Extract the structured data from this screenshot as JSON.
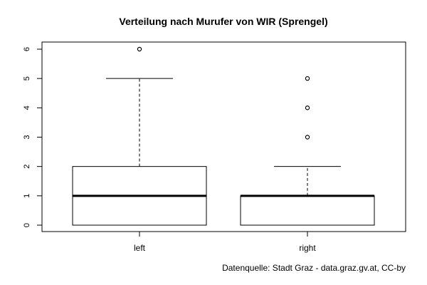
{
  "chart_data": {
    "type": "boxplot",
    "title": "Verteilung nach Murufer von WIR (Sprengel)",
    "xlabel": "",
    "ylabel": "",
    "ylim": [
      0,
      6
    ],
    "yticks": [
      0,
      1,
      2,
      3,
      4,
      5,
      6
    ],
    "categories": [
      "left",
      "right"
    ],
    "boxes": [
      {
        "category": "left",
        "whisker_low": 0,
        "q1": 0,
        "median": 1,
        "q3": 2,
        "whisker_high": 5,
        "outliers": [
          6
        ]
      },
      {
        "category": "right",
        "whisker_low": 0,
        "q1": 0,
        "median": 1,
        "q3": 1,
        "whisker_high": 2,
        "outliers": [
          3,
          4,
          5
        ]
      }
    ],
    "grid": false,
    "legend": "none"
  },
  "caption": "Datenquelle: Stadt Graz - data.graz.gv.at, CC-by"
}
